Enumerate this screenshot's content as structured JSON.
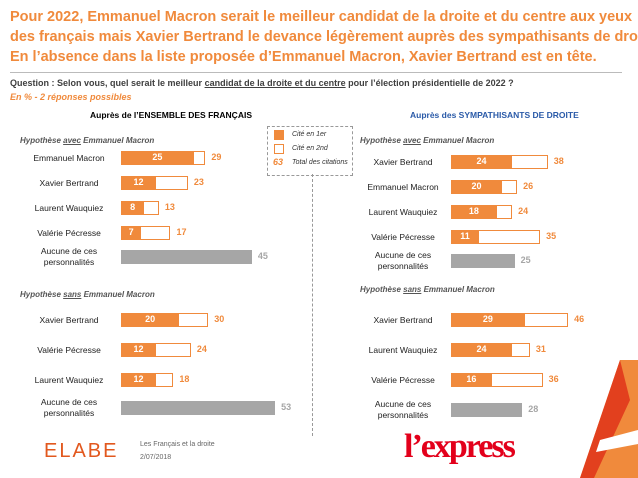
{
  "title": [
    "Pour 2022, Emmanuel Macron serait le meilleur candidat de la droite et du centre aux yeux",
    "des français mais Xavier Bertrand le devance légèrement auprès des sympathisants de droite.",
    "En l’absence dans la liste proposée d’Emmanuel Macron, Xavier Bertrand est en tête."
  ],
  "question": [
    "Question : Selon vous, quel serait le meilleur ",
    "candidat de la droite et du centre",
    " pour l’élection présidentielle de 2022 ?"
  ],
  "subtitle": "En % - 2 réponses possibles",
  "legend": {
    "second": "Cité en 2nd",
    "sample": 63
  },
  "chart_data": [
    {
      "type": "bar",
      "title": "Auprès de l’ENSEMBLE DES FRANÇAIS",
      "subtitle": [
        "Hypothèse ",
        "avec",
        " Emmanuel Macron"
      ],
      "categories": [
        "Emmanuel Macron",
        "Xavier Bertrand",
        "Laurent Wauquiez",
        "Valérie Pécresse",
        "Aucune de ces personnalités"
      ],
      "series": [
        {
          "name": "Cité en 1er",
          "color": "#f08a3c",
          "values": [
            25,
            12,
            8,
            7,
            null
          ]
        },
        {
          "name": "Total des citations",
          "color": "#f08a3c",
          "values": [
            29,
            23,
            13,
            17,
            45
          ]
        }
      ],
      "none_color": "#a6a6a6",
      "xlim": [
        0,
        55
      ]
    },
    {
      "type": "bar",
      "subtitle": [
        "Hypothèse ",
        "sans",
        " Emmanuel Macron"
      ],
      "categories": [
        "Xavier Bertrand",
        "Valérie Pécresse",
        "Laurent Wauquiez",
        "Aucune de ces personnalités"
      ],
      "series": [
        {
          "color": "#f08a3c",
          "values": [
            20,
            12,
            12,
            null
          ]
        },
        {
          "color": "#f08a3c",
          "values": [
            30,
            24,
            18,
            53
          ]
        }
      ],
      "none_color": "#a6a6a6",
      "xlim": [
        0,
        55
      ]
    },
    {
      "type": "bar",
      "title": "Auprès des SYMPATHISANTS DE DROITE",
      "subtitle": [
        "Hypothèse ",
        "avec",
        " Emmanuel Macron"
      ],
      "categories": [
        "Xavier Bertrand",
        "Emmanuel Macron",
        "Laurent Wauquiez",
        "Valérie Pécresse",
        "Aucune de ces personnalités"
      ],
      "series": [
        {
          "color": "#f08a3c",
          "values": [
            24,
            20,
            18,
            11,
            null
          ]
        },
        {
          "color": "#f08a3c",
          "values": [
            38,
            26,
            24,
            35,
            25
          ]
        }
      ],
      "none_color": "#a6a6a6",
      "xlim": [
        0,
        55
      ]
    },
    {
      "type": "bar",
      "subtitle": [
        "Hypothèse ",
        "sans",
        " Emmanuel Macron"
      ],
      "categories": [
        "Xavier Bertrand",
        "Laurent Wauquiez",
        "Valérie Pécresse",
        "Aucune de ces personnalités"
      ],
      "series": [
        {
          "color": "#f08a3c",
          "values": [
            29,
            24,
            16,
            null
          ]
        },
        {
          "color": "#f08a3c",
          "values": [
            46,
            31,
            36,
            28
          ]
        }
      ],
      "none_color": "#a6a6a6",
      "xlim": [
        0,
        55
      ]
    }
  ],
  "footer": {
    "logo_left": "ELABE",
    "source": "Les Français et la droite",
    "date": "2/07/2018",
    "logo_right": "l’express"
  }
}
